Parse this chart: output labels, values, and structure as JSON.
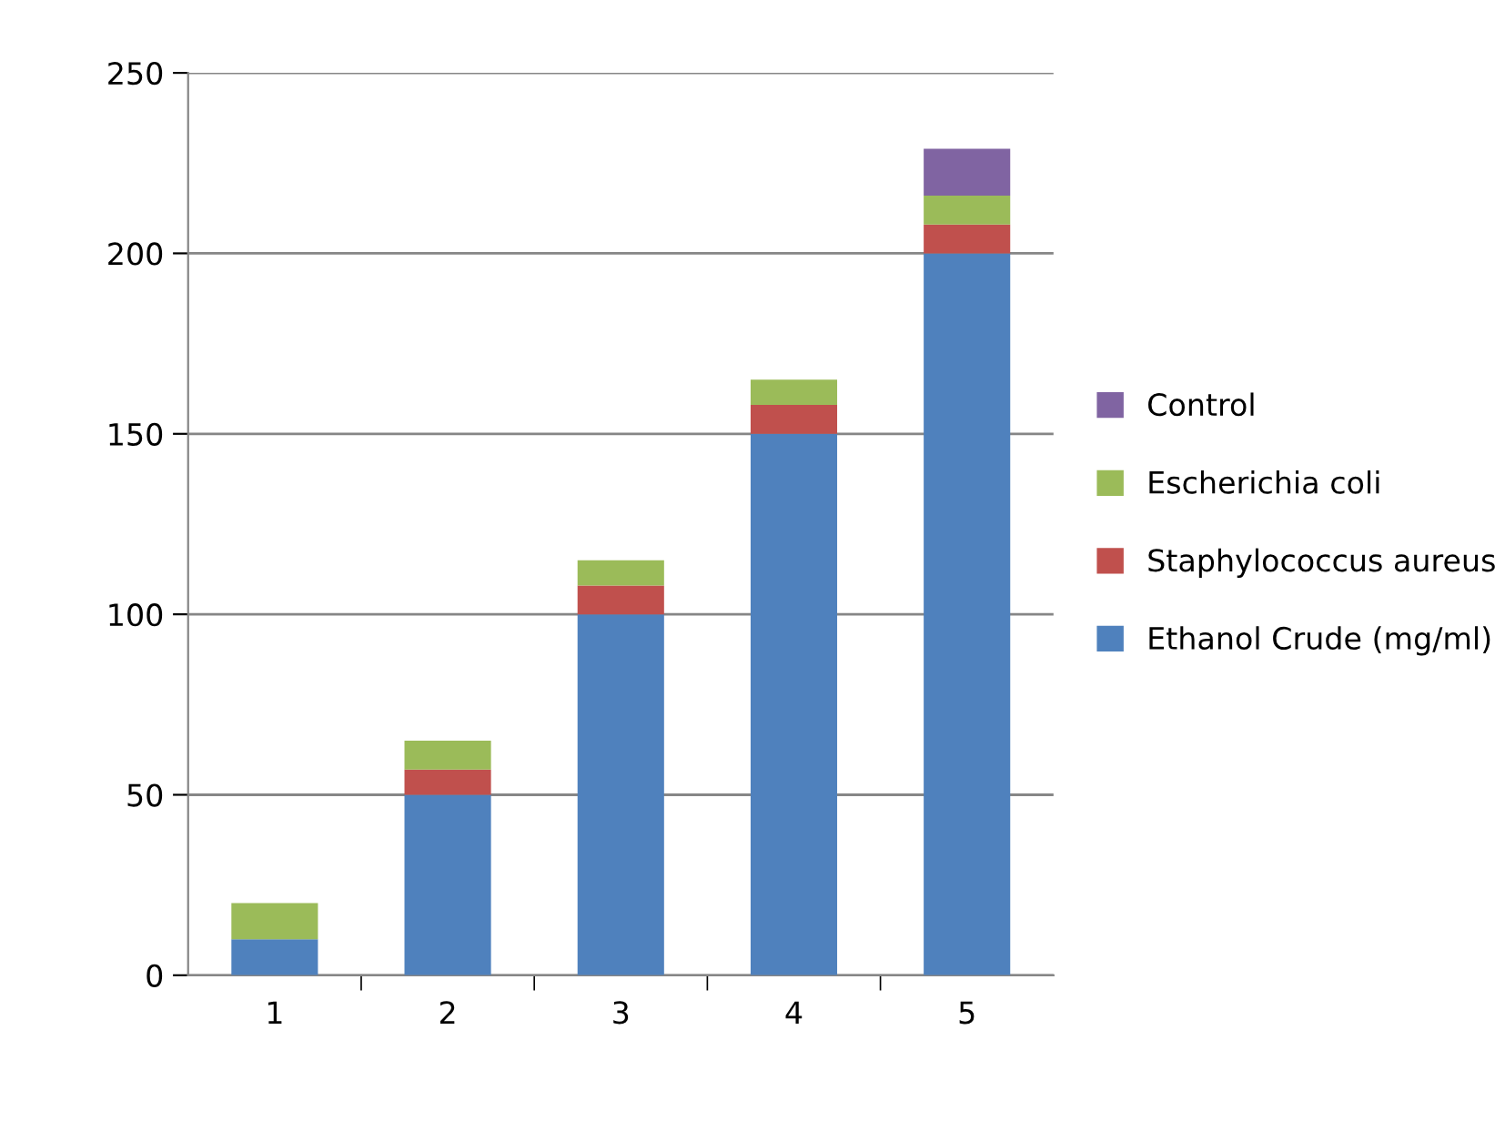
{
  "chart_data": {
    "type": "bar",
    "stacked": true,
    "categories": [
      "1",
      "2",
      "3",
      "4",
      "5"
    ],
    "series": [
      {
        "name": "Ethanol Crude (mg/ml)",
        "color": "#4f81bd",
        "values": [
          10,
          50,
          100,
          150,
          200
        ]
      },
      {
        "name": "Staphylococcus aureus",
        "color": "#c0504d",
        "values": [
          0,
          7,
          8,
          8,
          8
        ]
      },
      {
        "name": "Escherichia coli",
        "color": "#9bbb59",
        "values": [
          10,
          8,
          7,
          7,
          8
        ]
      },
      {
        "name": "Control",
        "color": "#8064a2",
        "values": [
          null,
          null,
          null,
          null,
          13
        ]
      }
    ],
    "ylim": [
      0,
      250
    ],
    "yticks": [
      0,
      50,
      100,
      150,
      200,
      250
    ],
    "grid": "y",
    "legend": "right"
  }
}
